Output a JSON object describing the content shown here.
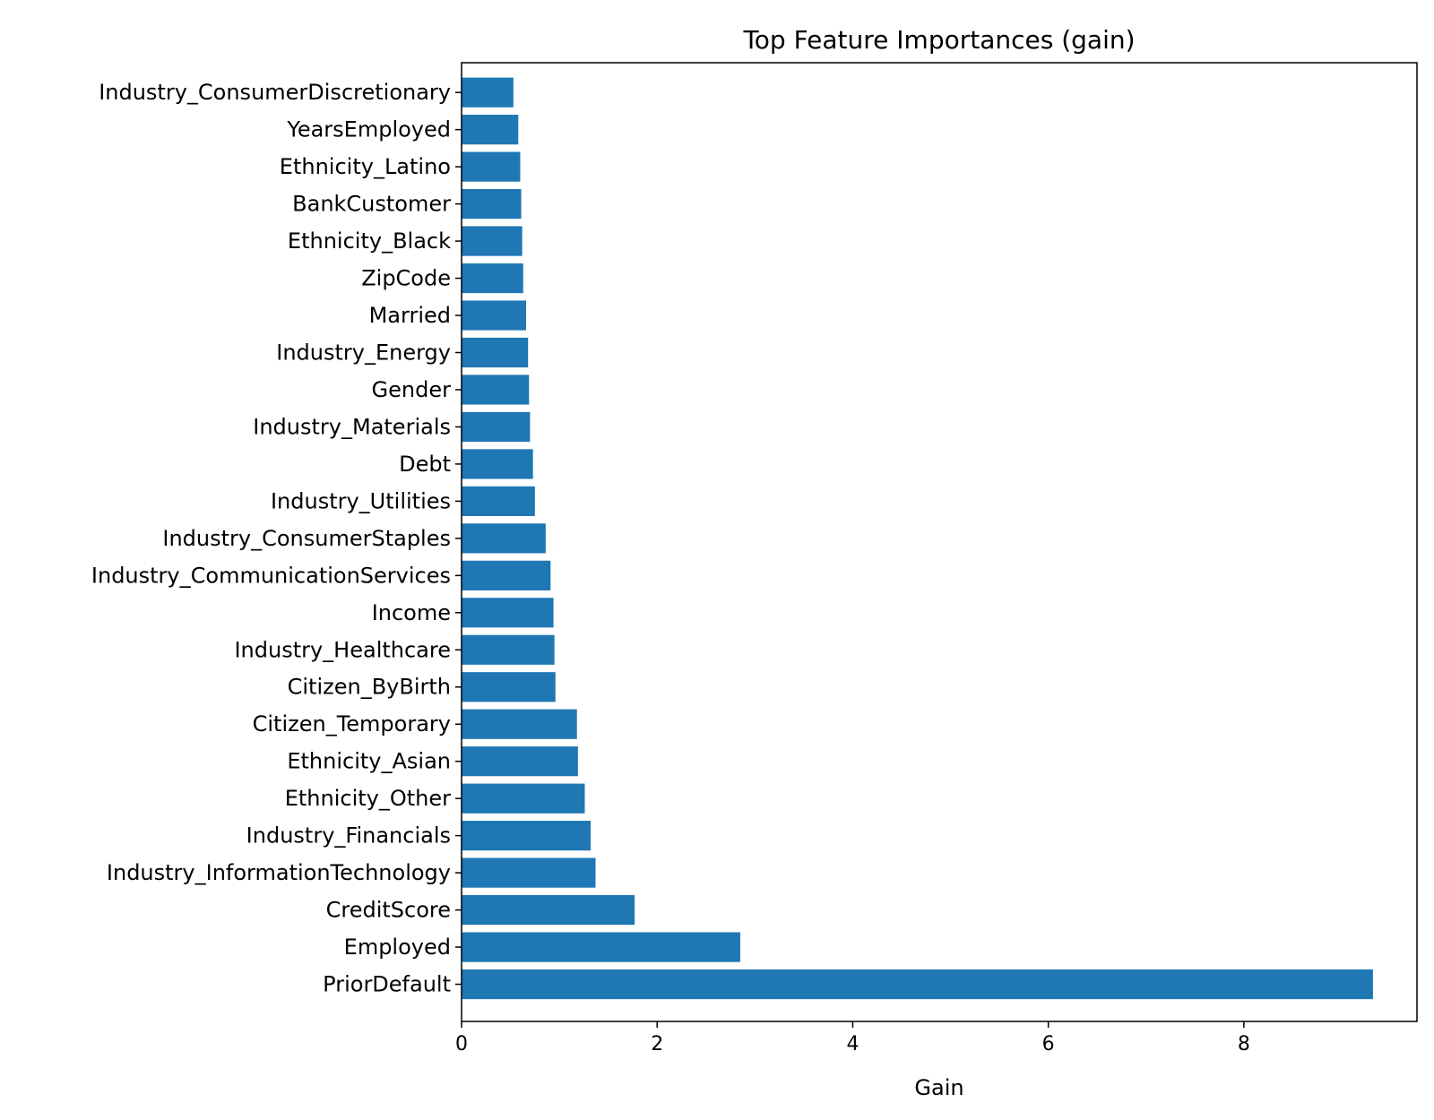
{
  "chart_data": {
    "type": "bar",
    "orientation": "horizontal",
    "title": "Top Feature Importances (gain)",
    "xlabel": "Gain",
    "ylabel": "",
    "xlim": [
      0,
      9.77
    ],
    "xticks": [
      0,
      2,
      4,
      6,
      8
    ],
    "grid": false,
    "bar_color": "#1f77b4",
    "categories": [
      "PriorDefault",
      "Employed",
      "CreditScore",
      "Industry_InformationTechnology",
      "Industry_Financials",
      "Ethnicity_Other",
      "Ethnicity_Asian",
      "Citizen_Temporary",
      "Citizen_ByBirth",
      "Industry_Healthcare",
      "Income",
      "Industry_CommunicationServices",
      "Industry_ConsumerStaples",
      "Industry_Utilities",
      "Debt",
      "Industry_Materials",
      "Gender",
      "Industry_Energy",
      "Married",
      "ZipCode",
      "Ethnicity_Black",
      "BankCustomer",
      "Ethnicity_Latino",
      "YearsEmployed",
      "Industry_ConsumerDiscretionary"
    ],
    "values": [
      9.32,
      2.85,
      1.77,
      1.37,
      1.32,
      1.26,
      1.19,
      1.18,
      0.96,
      0.95,
      0.94,
      0.91,
      0.86,
      0.75,
      0.73,
      0.7,
      0.69,
      0.68,
      0.66,
      0.63,
      0.62,
      0.61,
      0.6,
      0.58,
      0.53
    ]
  }
}
